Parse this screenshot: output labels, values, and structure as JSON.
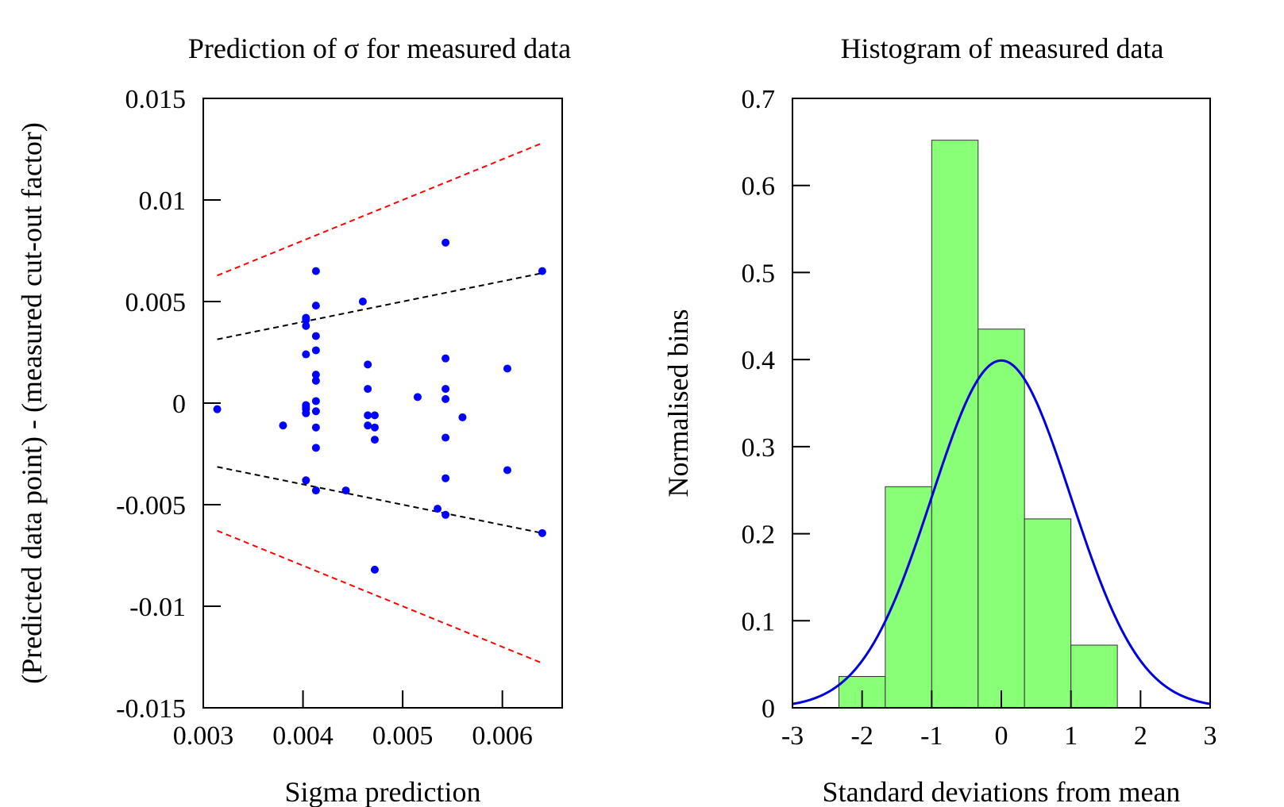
{
  "chart_data": [
    {
      "type": "scatter",
      "title": "Prediction of σ for measured data",
      "xlabel": "Sigma prediction",
      "ylabel": "(Predicted data point) - (measured cut-out factor)",
      "xlim": [
        0.003,
        0.0066
      ],
      "ylim": [
        -0.015,
        0.015
      ],
      "x_ticks": [
        0.003,
        0.004,
        0.005,
        0.006
      ],
      "x_tick_labels": [
        "0.003",
        "0.004",
        "0.005",
        "0.006"
      ],
      "y_ticks": [
        0.015,
        0.01,
        0.005,
        0,
        -0.005,
        -0.01,
        -0.015
      ],
      "y_tick_labels": [
        "0.015",
        "0.01",
        "0.005",
        "0",
        "-0.005",
        "-0.01",
        "-0.015"
      ],
      "grid": false,
      "colors": {
        "points": "#0000ff",
        "one_sigma_lines": "#000000",
        "two_sigma_lines": "#ff0000"
      },
      "points": [
        [
          0.00314,
          -0.0003
        ],
        [
          0.0038,
          -0.0011
        ],
        [
          0.00403,
          0.0042
        ],
        [
          0.00403,
          0.0041
        ],
        [
          0.00403,
          0.0038
        ],
        [
          0.00403,
          0.0024
        ],
        [
          0.00403,
          -0.0001
        ],
        [
          0.00403,
          -0.0002
        ],
        [
          0.00403,
          -0.0003
        ],
        [
          0.00403,
          -0.0005
        ],
        [
          0.00403,
          -0.0038
        ],
        [
          0.00413,
          0.0065
        ],
        [
          0.00413,
          0.0048
        ],
        [
          0.00413,
          0.0033
        ],
        [
          0.00413,
          0.0026
        ],
        [
          0.00413,
          0.0014
        ],
        [
          0.00413,
          0.0011
        ],
        [
          0.00413,
          0.0001
        ],
        [
          0.00413,
          -0.0004
        ],
        [
          0.00413,
          -0.0012
        ],
        [
          0.00413,
          -0.0022
        ],
        [
          0.00413,
          -0.0043
        ],
        [
          0.00443,
          -0.0043
        ],
        [
          0.0046,
          0.005
        ],
        [
          0.00465,
          0.0019
        ],
        [
          0.00465,
          0.0007
        ],
        [
          0.00465,
          -0.0006
        ],
        [
          0.00465,
          -0.0011
        ],
        [
          0.00472,
          -0.0006
        ],
        [
          0.00472,
          -0.0012
        ],
        [
          0.00472,
          -0.0018
        ],
        [
          0.00472,
          -0.0082
        ],
        [
          0.00515,
          0.0003
        ],
        [
          0.00535,
          -0.0052
        ],
        [
          0.00543,
          0.0079
        ],
        [
          0.00543,
          0.0022
        ],
        [
          0.00543,
          0.0007
        ],
        [
          0.00543,
          0.0002
        ],
        [
          0.00543,
          -0.0017
        ],
        [
          0.00543,
          -0.0037
        ],
        [
          0.00543,
          -0.0055
        ],
        [
          0.0056,
          -0.0007
        ],
        [
          0.00605,
          0.0017
        ],
        [
          0.00605,
          -0.0033
        ],
        [
          0.0064,
          0.0065
        ],
        [
          0.0064,
          -0.0064
        ]
      ],
      "lines": [
        {
          "kind": "+1 sigma",
          "x": [
            0.00314,
            0.0064
          ],
          "y": [
            0.00314,
            0.0064
          ]
        },
        {
          "kind": "-1 sigma",
          "x": [
            0.00314,
            0.0064
          ],
          "y": [
            -0.00314,
            -0.0064
          ]
        },
        {
          "kind": "+2 sigma",
          "x": [
            0.00314,
            0.0064
          ],
          "y": [
            0.00628,
            0.0128
          ]
        },
        {
          "kind": "-2 sigma",
          "x": [
            0.00314,
            0.0064
          ],
          "y": [
            -0.00628,
            -0.0128
          ]
        }
      ]
    },
    {
      "type": "bar",
      "subtype": "histogram",
      "title": "Histogram of measured data",
      "xlabel": "Standard deviations from mean",
      "ylabel": "Normalised bins",
      "xlim": [
        -3,
        3
      ],
      "ylim": [
        0,
        0.7
      ],
      "x_ticks": [
        -3,
        -2,
        -1,
        0,
        1,
        2,
        3
      ],
      "x_tick_labels": [
        "-3",
        "-2",
        "-1",
        "0",
        "1",
        "2",
        "3"
      ],
      "y_ticks": [
        0,
        0.1,
        0.2,
        0.3,
        0.4,
        0.5,
        0.6,
        0.7
      ],
      "y_tick_labels": [
        "0",
        "0.1",
        "0.2",
        "0.3",
        "0.4",
        "0.5",
        "0.6",
        "0.7"
      ],
      "grid": false,
      "colors": {
        "bars": "#88ff77",
        "bar_edges": "#333333",
        "curve": "#0000dd"
      },
      "bin_edges": [
        -3.0,
        -2.333,
        -1.667,
        -1.0,
        -0.333,
        0.333,
        1.0,
        1.667,
        2.333,
        3.0
      ],
      "bin_values": [
        0,
        0.036,
        0.254,
        0.652,
        0.435,
        0.217,
        0.072,
        0,
        0
      ],
      "curve": {
        "kind": "standard normal pdf",
        "mean": 0,
        "sd": 1,
        "peak": 0.399
      }
    }
  ]
}
